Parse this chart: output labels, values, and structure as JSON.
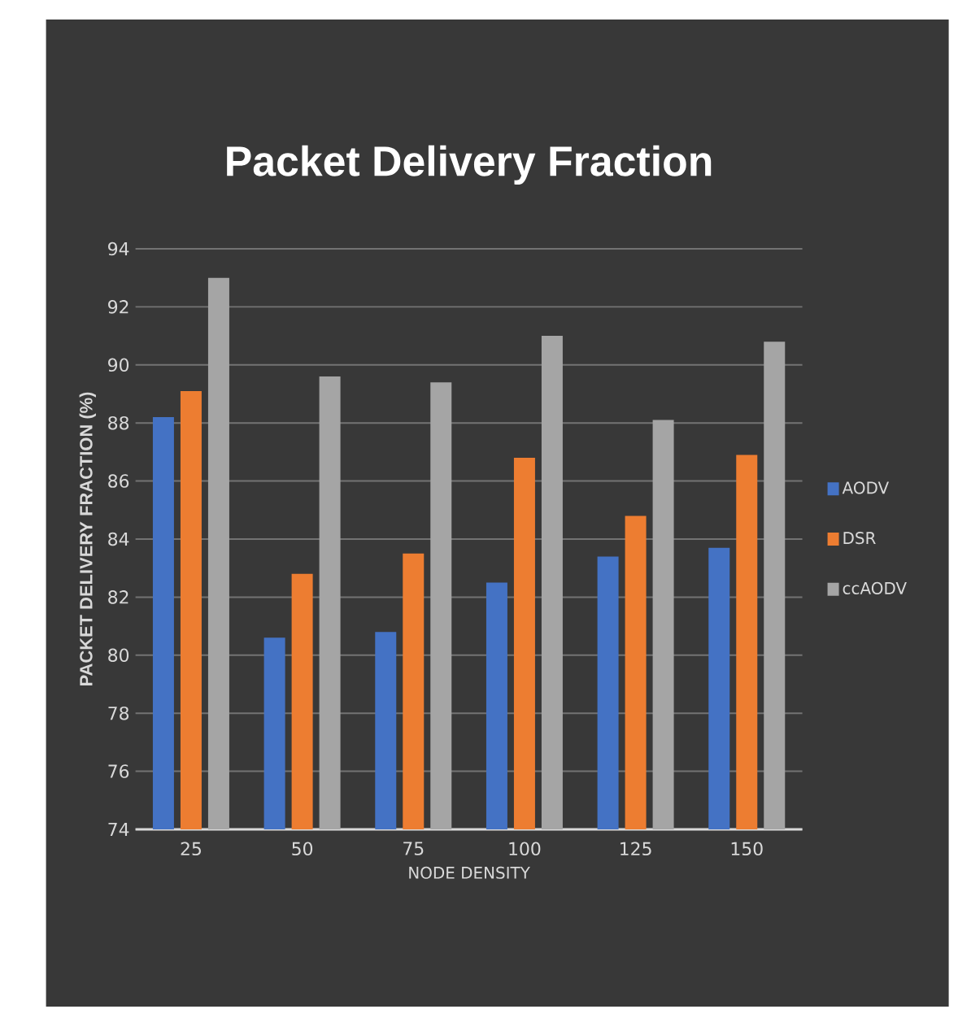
{
  "chart_data": {
    "type": "bar",
    "title": "Packet Delivery Fraction",
    "xlabel": "NODE DENSITY",
    "ylabel": "PACKET DELIVERY FRACTION (%)",
    "categories": [
      "25",
      "50",
      "75",
      "100",
      "125",
      "150"
    ],
    "series": [
      {
        "name": "AODV",
        "color": "#4472c4",
        "values": [
          88.2,
          80.6,
          80.8,
          82.5,
          83.4,
          83.7
        ]
      },
      {
        "name": "DSR",
        "color": "#ed7d31",
        "values": [
          89.1,
          82.8,
          83.5,
          86.8,
          84.8,
          86.9
        ]
      },
      {
        "name": "ccAODV",
        "color": "#a5a5a5",
        "values": [
          93.0,
          89.6,
          89.4,
          91.0,
          88.1,
          90.8
        ]
      }
    ],
    "ylim": [
      74,
      94
    ],
    "yticks": [
      74,
      76,
      78,
      80,
      82,
      84,
      86,
      88,
      90,
      92,
      94
    ],
    "grid": "y",
    "legend": "right"
  }
}
